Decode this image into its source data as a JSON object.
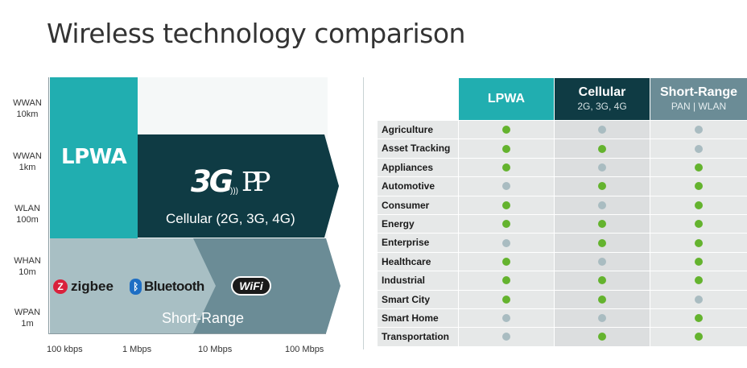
{
  "title": "Wireless technology comparison",
  "colors": {
    "lpwa": "#21aeb0",
    "cellular": "#0f3b44",
    "short_range": "#6b8c96",
    "yes": "#64b32e",
    "no": "#a9bcc1"
  },
  "diagram": {
    "y_labels": [
      {
        "line1": "WWAN",
        "line2": "10km"
      },
      {
        "line1": "WWAN",
        "line2": "1km"
      },
      {
        "line1": "WLAN",
        "line2": "100m"
      },
      {
        "line1": "WHAN",
        "line2": "10m"
      },
      {
        "line1": "WPAN",
        "line2": "1m"
      }
    ],
    "x_labels": [
      "100 kbps",
      "1 Mbps",
      "10 Mbps",
      "100 Mbps"
    ],
    "lpwa_label": "LPWA",
    "cellular_logo_main": "3G",
    "cellular_logo_pp": "PP",
    "cellular_label": "Cellular (2G, 3G, 4G)",
    "short_range_label": "Short-Range",
    "zigbee_label": "zigbee",
    "zigbee_icon": "Z",
    "bluetooth_label": "Bluetooth",
    "bluetooth_icon": "ᛒ",
    "wifi_label": "WiFi"
  },
  "table": {
    "headers": [
      {
        "name": "LPWA",
        "sub": ""
      },
      {
        "name": "Cellular",
        "sub": "2G, 3G, 4G"
      },
      {
        "name": "Short-Range",
        "sub": "PAN | WLAN"
      }
    ],
    "rows": [
      {
        "label": "Agriculture",
        "values": [
          true,
          false,
          false
        ]
      },
      {
        "label": "Asset Tracking",
        "values": [
          true,
          true,
          false
        ]
      },
      {
        "label": "Appliances",
        "values": [
          true,
          false,
          true
        ]
      },
      {
        "label": "Automotive",
        "values": [
          false,
          true,
          true
        ]
      },
      {
        "label": "Consumer",
        "values": [
          true,
          false,
          true
        ]
      },
      {
        "label": "Energy",
        "values": [
          true,
          true,
          true
        ]
      },
      {
        "label": "Enterprise",
        "values": [
          false,
          true,
          true
        ]
      },
      {
        "label": "Healthcare",
        "values": [
          true,
          false,
          true
        ]
      },
      {
        "label": "Industrial",
        "values": [
          true,
          true,
          true
        ]
      },
      {
        "label": "Smart City",
        "values": [
          true,
          true,
          false
        ]
      },
      {
        "label": "Smart Home",
        "values": [
          false,
          false,
          true
        ]
      },
      {
        "label": "Transportation",
        "values": [
          false,
          true,
          true
        ]
      }
    ]
  }
}
